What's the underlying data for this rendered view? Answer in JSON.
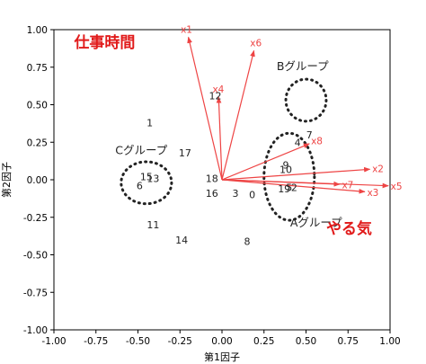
{
  "chart_data": {
    "type": "scatter",
    "xlabel": "第1因子",
    "ylabel": "第2因子",
    "xlim": [
      -1.0,
      1.0
    ],
    "ylim": [
      -1.0,
      1.0
    ],
    "grid": false,
    "xticks": [
      -1.0,
      -0.75,
      -0.5,
      -0.25,
      0.0,
      0.25,
      0.5,
      0.75,
      1.0
    ],
    "yticks": [
      -1.0,
      -0.75,
      -0.5,
      -0.25,
      0.0,
      0.25,
      0.5,
      0.75,
      1.0
    ],
    "xtick_labels": [
      "-1.00",
      "-0.75",
      "-0.50",
      "-0.25",
      "0.00",
      "0.25",
      "0.50",
      "0.75",
      "1.00"
    ],
    "ytick_labels": [
      "-1.00",
      "-0.75",
      "-0.50",
      "-0.25",
      "0.00",
      "0.25",
      "0.50",
      "0.75",
      "1.00"
    ],
    "points": [
      {
        "label": "0",
        "x": 0.18,
        "y": -0.1
      },
      {
        "label": "1",
        "x": -0.43,
        "y": 0.38
      },
      {
        "label": "2",
        "x": 0.43,
        "y": -0.05
      },
      {
        "label": "3",
        "x": 0.08,
        "y": -0.09
      },
      {
        "label": "4",
        "x": 0.45,
        "y": 0.25
      },
      {
        "label": "5",
        "x": 0.4,
        "y": -0.05
      },
      {
        "label": "6",
        "x": -0.49,
        "y": -0.04
      },
      {
        "label": "7",
        "x": 0.52,
        "y": 0.3
      },
      {
        "label": "8",
        "x": 0.15,
        "y": -0.41
      },
      {
        "label": "9",
        "x": 0.38,
        "y": 0.1
      },
      {
        "label": "10",
        "x": 0.38,
        "y": 0.07
      },
      {
        "label": "11",
        "x": -0.41,
        "y": -0.3
      },
      {
        "label": "12",
        "x": -0.04,
        "y": 0.56
      },
      {
        "label": "13",
        "x": -0.41,
        "y": 0.01
      },
      {
        "label": "14",
        "x": -0.24,
        "y": -0.4
      },
      {
        "label": "15",
        "x": -0.45,
        "y": 0.02
      },
      {
        "label": "16",
        "x": -0.06,
        "y": -0.09
      },
      {
        "label": "17",
        "x": -0.22,
        "y": 0.18
      },
      {
        "label": "18",
        "x": -0.06,
        "y": 0.01
      },
      {
        "label": "19",
        "x": 0.37,
        "y": -0.06
      }
    ],
    "vectors": [
      {
        "name": "x1",
        "x": -0.2,
        "y": 0.95
      },
      {
        "name": "x2",
        "x": 0.88,
        "y": 0.07
      },
      {
        "name": "x3",
        "x": 0.85,
        "y": -0.08
      },
      {
        "name": "x4",
        "x": -0.02,
        "y": 0.55
      },
      {
        "name": "x5",
        "x": 0.99,
        "y": -0.04
      },
      {
        "name": "x6",
        "x": 0.19,
        "y": 0.86
      },
      {
        "name": "x7",
        "x": 0.7,
        "y": -0.03
      },
      {
        "name": "x8",
        "x": 0.52,
        "y": 0.24
      }
    ],
    "groups": [
      {
        "label": "Aグループ",
        "cx": 0.4,
        "cy": 0.02,
        "rx": 0.15,
        "ry": 0.29
      },
      {
        "label": "Bグループ",
        "cx": 0.5,
        "cy": 0.53,
        "rx": 0.12,
        "ry": 0.14
      },
      {
        "label": "Cグループ",
        "cx": -0.45,
        "cy": -0.02,
        "rx": 0.15,
        "ry": 0.14
      }
    ],
    "annotations": [
      {
        "text": "仕事時間",
        "x": -0.88,
        "y": 0.88
      },
      {
        "text": "やる気",
        "x": 0.62,
        "y": -0.36
      }
    ],
    "colors": {
      "points": "#222222",
      "vectors": "#ee4444",
      "groups": "#222222",
      "annotations": "#e11b1b"
    }
  }
}
